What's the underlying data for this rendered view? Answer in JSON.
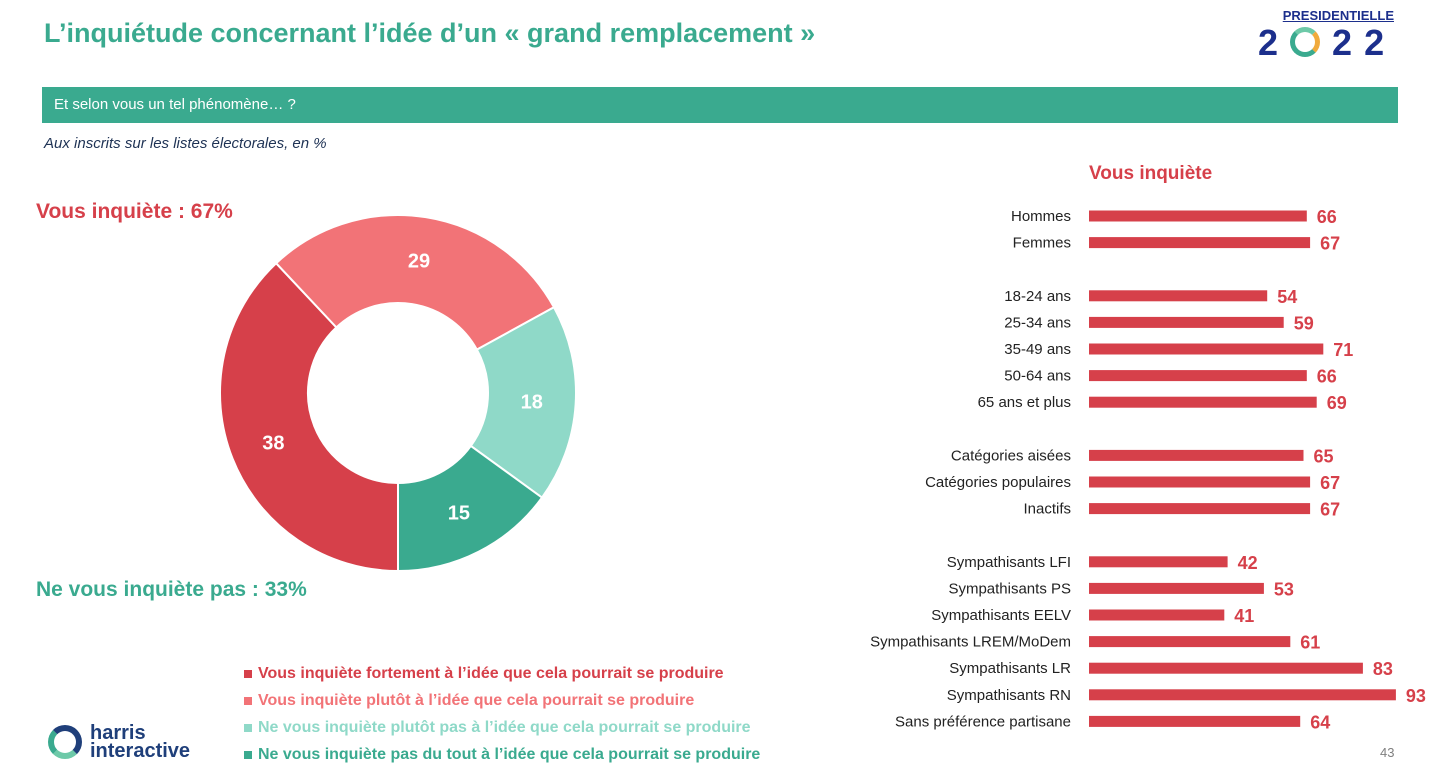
{
  "page": {
    "title": "L’inquiétude concernant l’idée d’un « grand remplacement »",
    "banner": "Et selon vous un tel phénomène… ?",
    "subtitle": "Aux inscrits sur les listes électorales, en %",
    "page_number": "43"
  },
  "logo": {
    "top_text": "PRESIDENTIELLE",
    "year_digits": [
      "2",
      "2",
      "2"
    ]
  },
  "brand": {
    "line1": "harris",
    "line2": "interactive"
  },
  "colors": {
    "red": "#d6404a",
    "pink": "#f27377",
    "light_teal": "#8fd9c8",
    "teal": "#3aaa8f",
    "navy": "#1c2f8c"
  },
  "chart_data": [
    {
      "type": "pie",
      "labels": [
        "Vous inquiète fortement à l’idée que cela pourrait se produire",
        "Vous inquiète plutôt à l’idée que cela pourrait se produire",
        "Ne vous inquiète plutôt pas à l’idée que cela pourrait se produire",
        "Ne vous inquiète pas du tout à l’idée que cela pourrait se produire"
      ],
      "values": [
        38,
        29,
        18,
        15
      ],
      "colors": [
        "#d6404a",
        "#f27377",
        "#8fd9c8",
        "#3aaa8f"
      ],
      "donut": true,
      "summary_labels": [
        "Vous inquiète : 67%",
        "Ne vous inquiète pas : 33%"
      ]
    },
    {
      "type": "bar",
      "orientation": "horizontal",
      "title": "Vous inquiète",
      "groups": [
        [
          "Hommes",
          "Femmes"
        ],
        [
          "18-24 ans",
          "25-34 ans",
          "35-49 ans",
          "50-64 ans",
          "65 ans et plus"
        ],
        [
          "Catégories aisées",
          "Catégories populaires",
          "Inactifs"
        ],
        [
          "Sympathisants LFI",
          "Sympathisants PS",
          "Sympathisants EELV",
          "Sympathisants LREM/MoDem",
          "Sympathisants LR",
          "Sympathisants RN",
          "Sans préférence partisane"
        ]
      ],
      "categories": [
        "Hommes",
        "Femmes",
        "18-24 ans",
        "25-34 ans",
        "35-49 ans",
        "50-64 ans",
        "65 ans et plus",
        "Catégories aisées",
        "Catégories populaires",
        "Inactifs",
        "Sympathisants LFI",
        "Sympathisants PS",
        "Sympathisants EELV",
        "Sympathisants LREM/MoDem",
        "Sympathisants LR",
        "Sympathisants RN",
        "Sans préférence partisane"
      ],
      "values": [
        66,
        67,
        54,
        59,
        71,
        66,
        69,
        65,
        67,
        67,
        42,
        53,
        41,
        61,
        83,
        93,
        64
      ],
      "color": "#d6404a",
      "xlim": [
        0,
        100
      ]
    }
  ]
}
